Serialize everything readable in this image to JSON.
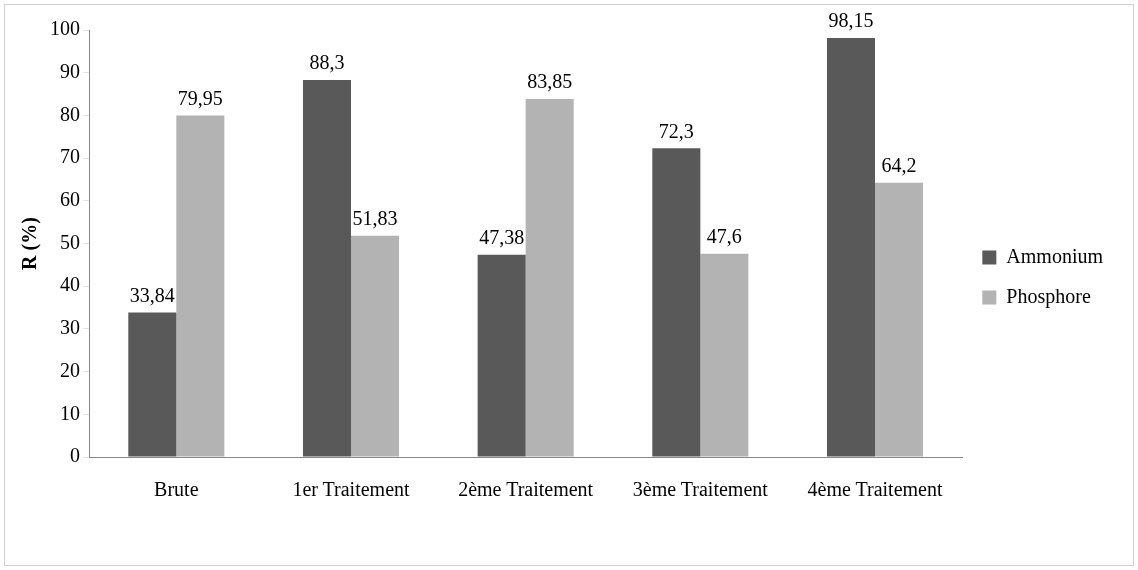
{
  "chart_data": {
    "type": "bar",
    "ylabel": "R (%)",
    "categories": [
      "Brute",
      "1er Traitement",
      "2ème Traitement",
      "3ème Traitement",
      "4ème Traitement"
    ],
    "series": [
      {
        "name": "Ammonium",
        "color": "#595959",
        "values": [
          33.84,
          88.3,
          47.38,
          72.3,
          98.15
        ],
        "value_labels": [
          "33,84",
          "88,3",
          "47,38",
          "72,3",
          "98,15"
        ]
      },
      {
        "name": "Phosphore",
        "color": "#b3b3b3",
        "values": [
          79.95,
          51.83,
          83.85,
          47.6,
          64.2
        ],
        "value_labels": [
          "79,95",
          "51,83",
          "83,85",
          "47,6",
          "64,2"
        ]
      }
    ],
    "ylim": [
      0,
      100
    ],
    "yticks": [
      0,
      10,
      20,
      30,
      40,
      50,
      60,
      70,
      80,
      90,
      100
    ],
    "grid": false,
    "legend": "right"
  }
}
